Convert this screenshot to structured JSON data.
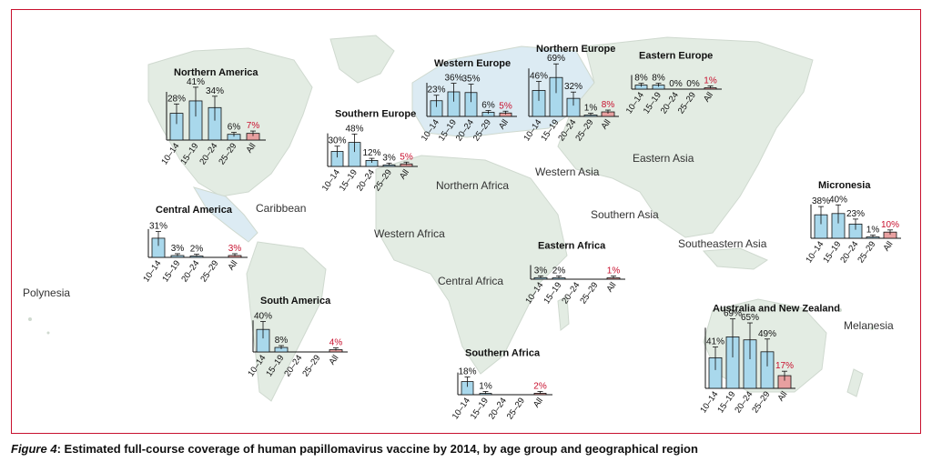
{
  "caption": {
    "figure_label": "Figure 4",
    "text": ": Estimated full-course coverage of human papillomavirus vaccine by 2014, by age group and geographical region"
  },
  "colors": {
    "frame": "#c8102e",
    "bar": "#a9d8ec",
    "bar_all": "#e8a0a0",
    "pct_all": "#c8102e",
    "land": "#e3ece3",
    "land_alt": "#dcebf3"
  },
  "map_labels": [
    "Caribbean",
    "Polynesia",
    "Western Africa",
    "Northern Africa",
    "Central Africa",
    "Western Asia",
    "Eastern Asia",
    "Southern Asia",
    "Southeastern Asia",
    "Melanesia"
  ],
  "chart_data": [
    {
      "type": "bar",
      "title": "Northern America",
      "categories": [
        "10–14",
        "15–19",
        "20–24",
        "25–29",
        "All"
      ],
      "labels": [
        "28%",
        "41%",
        "34%",
        "6%",
        "7%"
      ],
      "values": [
        28,
        41,
        34,
        6,
        7
      ]
    },
    {
      "type": "bar",
      "title": "Southern Europe",
      "categories": [
        "10–14",
        "15–19",
        "20–24",
        "25–29",
        "All"
      ],
      "labels": [
        "30%",
        "48%",
        "12%",
        "3%",
        "5%"
      ],
      "values": [
        30,
        48,
        12,
        3,
        5
      ]
    },
    {
      "type": "bar",
      "title": "Western Europe",
      "categories": [
        "10–14",
        "15–19",
        "20–24",
        "25–29",
        "All"
      ],
      "labels": [
        "23%",
        "36%",
        "35%",
        "6%",
        "5%"
      ],
      "values": [
        23,
        36,
        35,
        6,
        5
      ]
    },
    {
      "type": "bar",
      "title": "Northern Europe",
      "categories": [
        "10–14",
        "15–19",
        "20–24",
        "25–29",
        "All"
      ],
      "labels": [
        "46%",
        "69%",
        "32%",
        "1%",
        "8%"
      ],
      "values": [
        46,
        69,
        32,
        1,
        8
      ]
    },
    {
      "type": "bar",
      "title": "Eastern Europe",
      "categories": [
        "10–14",
        "15–19",
        "20–24",
        "25–29",
        "All"
      ],
      "labels": [
        "8%",
        "8%",
        "0%",
        "0%",
        "1%"
      ],
      "values": [
        8,
        8,
        0,
        0,
        1
      ]
    },
    {
      "type": "bar",
      "title": "Central America",
      "categories": [
        "10–14",
        "15–19",
        "20–24",
        "25–29",
        "All"
      ],
      "labels": [
        "31%",
        "3%",
        "2%",
        "",
        "3%"
      ],
      "values": [
        31,
        3,
        2,
        0,
        3
      ]
    },
    {
      "type": "bar",
      "title": "South America",
      "categories": [
        "10–14",
        "15–19",
        "20–24",
        "25–29",
        "All"
      ],
      "labels": [
        "40%",
        "8%",
        "",
        "",
        "4%"
      ],
      "values": [
        40,
        8,
        0,
        0,
        4
      ]
    },
    {
      "type": "bar",
      "title": "Eastern Africa",
      "categories": [
        "10–14",
        "15–19",
        "20–24",
        "25–29",
        "All"
      ],
      "labels": [
        "3%",
        "2%",
        "",
        "",
        "1%"
      ],
      "values": [
        3,
        2,
        0,
        0,
        1
      ]
    },
    {
      "type": "bar",
      "title": "Southern Africa",
      "categories": [
        "10–14",
        "15–19",
        "20–24",
        "25–29",
        "All"
      ],
      "labels": [
        "18%",
        "1%",
        "",
        "",
        "2%"
      ],
      "values": [
        18,
        1,
        0,
        0,
        2
      ]
    },
    {
      "type": "bar",
      "title": "Micronesia",
      "categories": [
        "10–14",
        "15–19",
        "20–24",
        "25–29",
        "All"
      ],
      "labels": [
        "38%",
        "40%",
        "23%",
        "1%",
        "10%"
      ],
      "values": [
        38,
        40,
        23,
        1,
        10
      ]
    },
    {
      "type": "bar",
      "title": "Australia and New Zealand",
      "categories": [
        "10–14",
        "15–19",
        "20–24",
        "25–29",
        "All"
      ],
      "labels": [
        "41%",
        "69%",
        "65%",
        "49%",
        "17%"
      ],
      "values": [
        41,
        69,
        65,
        49,
        17
      ]
    }
  ]
}
